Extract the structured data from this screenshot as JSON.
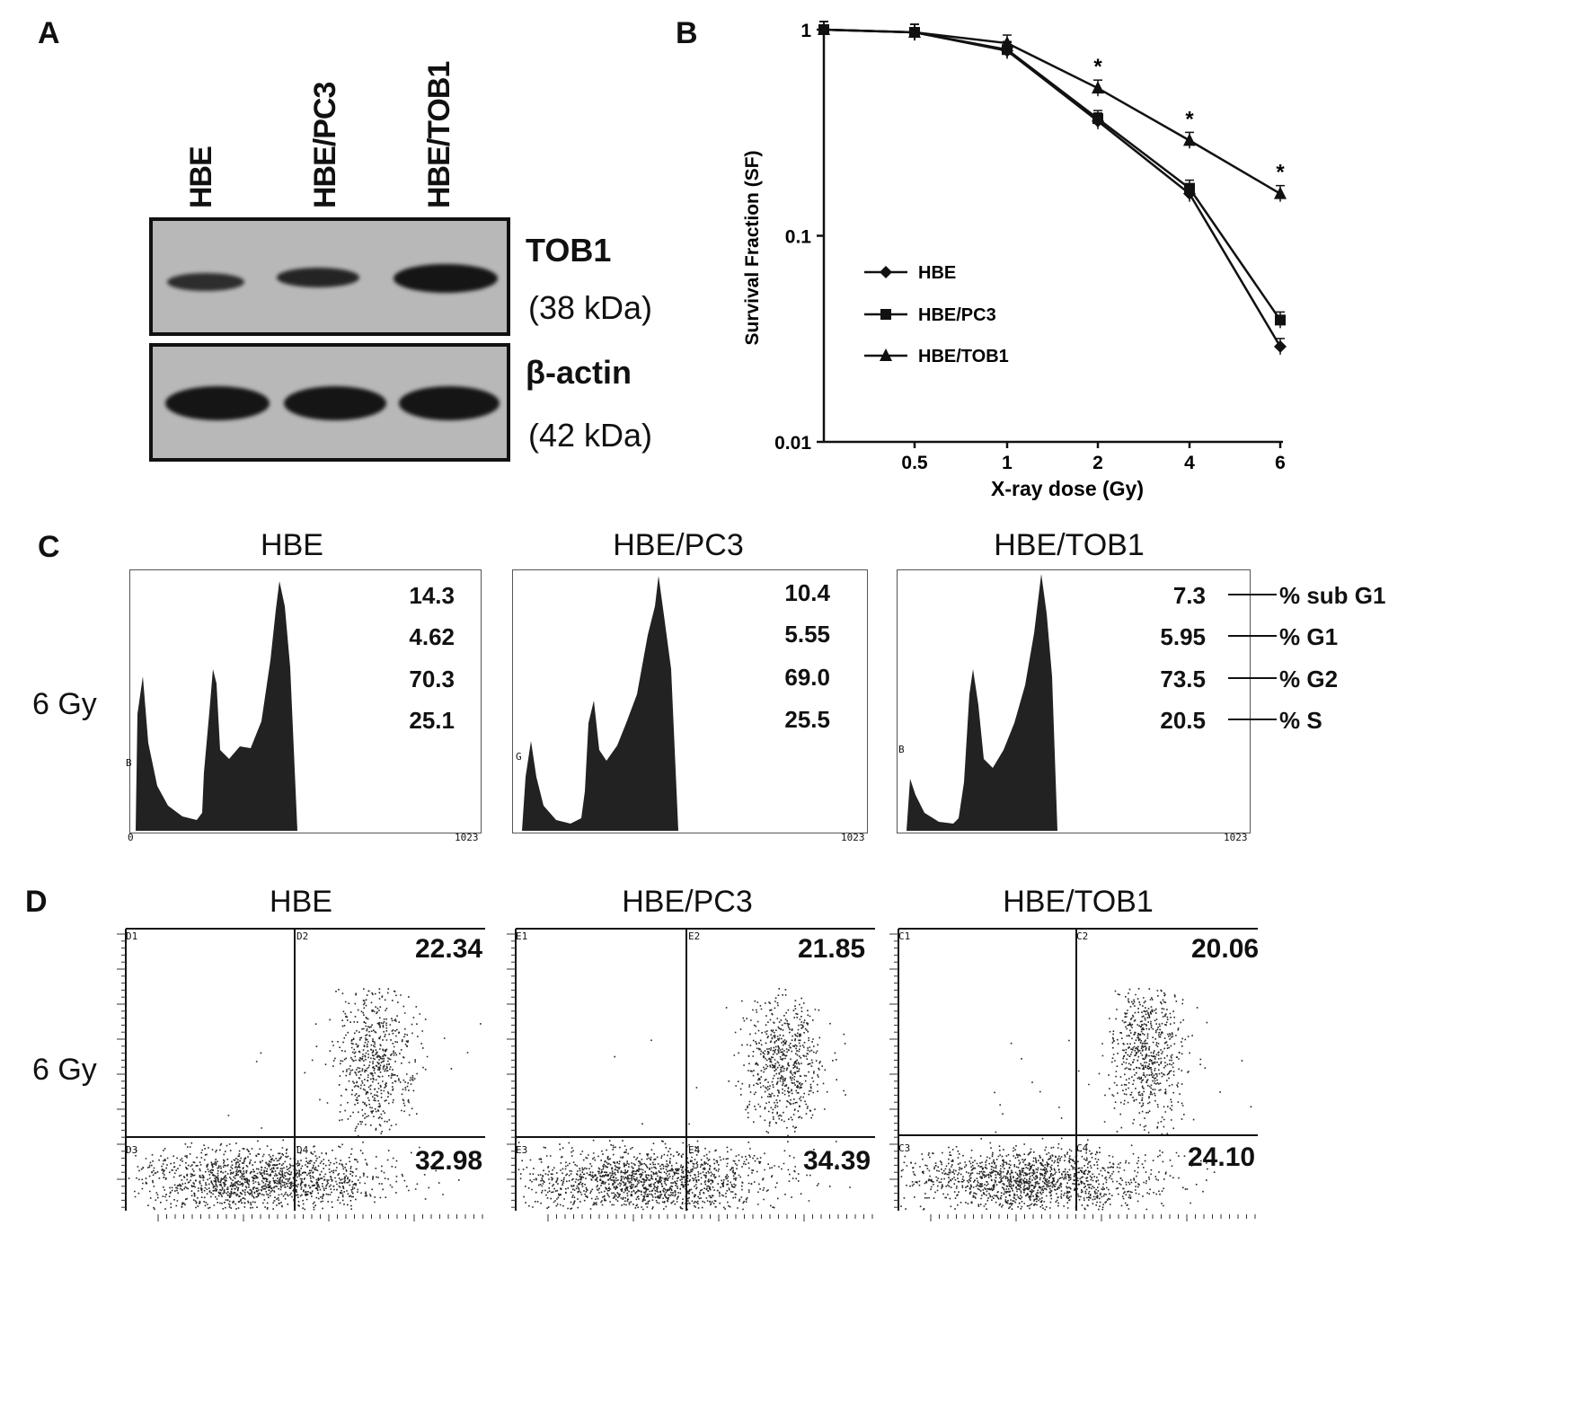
{
  "panels": {
    "a": "A",
    "b": "B",
    "c": "C",
    "d": "D"
  },
  "western_blot": {
    "lanes": [
      "HBE",
      "HBE/PC3",
      "HBE/TOB1"
    ],
    "bands": [
      {
        "name": "TOB1",
        "size": "(38 kDa)"
      },
      {
        "name": "β-actin",
        "size": "(42 kDa)"
      }
    ]
  },
  "chart_data": {
    "type": "line",
    "xlabel": "X-ray dose (Gy)",
    "ylabel": "Survival Fraction (SF)",
    "yscale": "log",
    "ylim": [
      0.01,
      1
    ],
    "yticks": [
      "0.01",
      "0.1",
      "1"
    ],
    "x": [
      "0",
      "0.5",
      "1",
      "2",
      "4",
      "6"
    ],
    "x_tick_labels": [
      "0.5",
      "1",
      "2",
      "4",
      "6"
    ],
    "legend_position": "center-left",
    "series": [
      {
        "name": "HBE",
        "marker": "diamond",
        "values": [
          1.0,
          0.97,
          0.79,
          0.36,
          0.16,
          0.029
        ]
      },
      {
        "name": "HBE/PC3",
        "marker": "square",
        "values": [
          1.0,
          0.97,
          0.8,
          0.37,
          0.17,
          0.039
        ]
      },
      {
        "name": "HBE/TOB1",
        "marker": "triangle",
        "values": [
          1.0,
          0.97,
          0.86,
          0.52,
          0.29,
          0.16
        ]
      }
    ],
    "significance_marks": [
      "*",
      "*",
      "*"
    ]
  },
  "cell_cycle": {
    "dose_label": "6 Gy",
    "axis_start": "0",
    "axis_end": "1023",
    "gate_labels": [
      "B",
      "G",
      "B"
    ],
    "rows": [
      "% sub G1",
      "% G1",
      "% G2",
      "% S"
    ],
    "groups": [
      {
        "title": "HBE",
        "values": [
          "14.3",
          "4.62",
          "70.3",
          "25.1"
        ]
      },
      {
        "title": "HBE/PC3",
        "values": [
          "10.4",
          "5.55",
          "69.0",
          "25.5"
        ]
      },
      {
        "title": "HBE/TOB1",
        "values": [
          "7.3",
          "5.95",
          "73.5",
          "20.5"
        ]
      }
    ]
  },
  "apoptosis": {
    "dose_label": "6 Gy",
    "groups": [
      {
        "title": "HBE",
        "upper_right": "22.34",
        "lower_right": "32.98",
        "quadrants": [
          "D1",
          "D2",
          "D3",
          "D4"
        ]
      },
      {
        "title": "HBE/PC3",
        "upper_right": "21.85",
        "lower_right": "34.39",
        "quadrants": [
          "E1",
          "E2",
          "E3",
          "E4"
        ]
      },
      {
        "title": "HBE/TOB1",
        "upper_right": "20.06",
        "lower_right": "24.10",
        "quadrants": [
          "C1",
          "C2",
          "C3",
          "C4"
        ]
      }
    ]
  }
}
